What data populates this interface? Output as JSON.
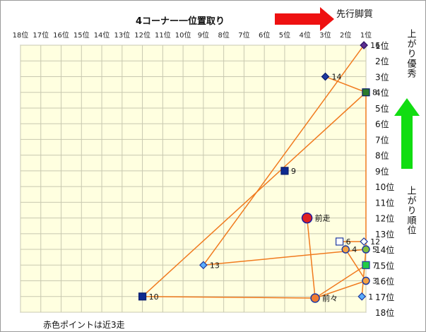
{
  "chart_data": {
    "type": "scatter",
    "title": "4コーナー一位置取り",
    "xlabel": "4コーナー一位置取り",
    "ylabel": "上がり順位",
    "x_range": [
      18,
      1
    ],
    "y_range": [
      1,
      18
    ],
    "x_ticks": [
      "18位",
      "17位",
      "16位",
      "15位",
      "14位",
      "13位",
      "12位",
      "11位",
      "10位",
      "9位",
      "8位",
      "7位",
      "6位",
      "5位",
      "4位",
      "3位",
      "2位",
      "1位"
    ],
    "y_ticks": [
      "1位",
      "2位",
      "3位",
      "4位",
      "5位",
      "6位",
      "7位",
      "8位",
      "9位",
      "10位",
      "11位",
      "12位",
      "13位",
      "14位",
      "15位",
      "16位",
      "17位",
      "18位"
    ],
    "grid": true,
    "legend": "none",
    "points": [
      {
        "label": "16",
        "x": 1.1,
        "y": 1.0,
        "marker": "diamond",
        "fill": "#5b2d90",
        "stroke": "#2a1060"
      },
      {
        "label": "14",
        "x": 3.0,
        "y": 3.0,
        "marker": "diamond",
        "fill": "#1f3aa0",
        "stroke": "#0a1c6a"
      },
      {
        "label": "8",
        "x": 1.0,
        "y": 4.0,
        "marker": "square",
        "fill": "#2c7a2c",
        "stroke": "#0a1c6a"
      },
      {
        "label": "9",
        "x": 5.0,
        "y": 9.0,
        "marker": "square",
        "fill": "#0f2a90",
        "stroke": "#0a1c6a"
      },
      {
        "label": "前走",
        "x": 3.9,
        "y": 12.0,
        "marker": "circle",
        "fill": "#e02020",
        "stroke": "#1a1aa0",
        "size": 7
      },
      {
        "label": "6",
        "x": 2.3,
        "y": 13.5,
        "marker": "square",
        "fill": "#ffffff",
        "stroke": "#1f3aa0"
      },
      {
        "label": "12",
        "x": 1.1,
        "y": 13.5,
        "marker": "diamond",
        "fill": "#ffffff",
        "stroke": "#1f3aa0"
      },
      {
        "label": "4",
        "x": 2.0,
        "y": 14.0,
        "marker": "circle",
        "fill": "#f4a142",
        "stroke": "#1f3aa0"
      },
      {
        "label": "5",
        "x": 1.0,
        "y": 14.0,
        "marker": "circle",
        "fill": "#7fbf3f",
        "stroke": "#1f3aa0"
      },
      {
        "label": "7",
        "x": 1.0,
        "y": 15.0,
        "marker": "square",
        "fill": "#22cc44",
        "stroke": "#1f3aa0"
      },
      {
        "label": "13",
        "x": 9.0,
        "y": 15.0,
        "marker": "diamond",
        "fill": "#5aaeff",
        "stroke": "#1f3aa0"
      },
      {
        "label": "3",
        "x": 1.0,
        "y": 16.0,
        "marker": "circle",
        "fill": "#f4a142",
        "stroke": "#1f3aa0"
      },
      {
        "label": "1",
        "x": 1.2,
        "y": 17.0,
        "marker": "diamond",
        "fill": "#5aaeff",
        "stroke": "#1f3aa0"
      },
      {
        "label": "10",
        "x": 12.0,
        "y": 17.0,
        "marker": "square",
        "fill": "#0f2a90",
        "stroke": "#0a1c6a"
      },
      {
        "label": "前々",
        "x": 3.5,
        "y": 17.1,
        "marker": "circle",
        "fill": "#f07a30",
        "stroke": "#1f3aa0",
        "size": 6
      }
    ],
    "lines": [
      {
        "color": "#f07a1e",
        "path": [
          [
            1.1,
            1.0
          ],
          [
            9.0,
            15.0
          ]
        ]
      },
      {
        "color": "#f07a1e",
        "path": [
          [
            3.0,
            3.0
          ],
          [
            1.0,
            4.0
          ],
          [
            12.0,
            17.0
          ]
        ]
      },
      {
        "color": "#f07a1e",
        "path": [
          [
            1.0,
            4.0
          ],
          [
            1.0,
            14.0
          ]
        ]
      },
      {
        "color": "#f07a1e",
        "path": [
          [
            9.0,
            15.0
          ],
          [
            1.0,
            14.0
          ]
        ]
      },
      {
        "color": "#f07a1e",
        "path": [
          [
            12.0,
            17.0
          ],
          [
            3.5,
            17.1
          ]
        ]
      },
      {
        "color": "#f07a1e",
        "path": [
          [
            3.9,
            12.0
          ],
          [
            3.5,
            17.1
          ]
        ]
      },
      {
        "color": "#f07a1e",
        "path": [
          [
            3.5,
            17.1
          ],
          [
            1.0,
            16.0
          ]
        ]
      },
      {
        "color": "#f07a1e",
        "path": [
          [
            2.3,
            13.5
          ],
          [
            1.1,
            13.5
          ]
        ]
      },
      {
        "color": "#f07a1e",
        "path": [
          [
            2.0,
            14.0
          ],
          [
            1.0,
            16.0
          ]
        ]
      },
      {
        "color": "#f07a1e",
        "path": [
          [
            1.0,
            14.0
          ],
          [
            1.2,
            17.0
          ]
        ]
      },
      {
        "color": "#f07a1e",
        "path": [
          [
            1.0,
            15.0
          ],
          [
            3.5,
            17.1
          ]
        ]
      }
    ]
  },
  "annotations": {
    "arrow_label_right": "先行脚質",
    "side_label_top": "上がり優秀",
    "side_label_bottom": "上がり順位",
    "footer_note": "赤色ポイントは近3走"
  },
  "colors": {
    "plot_bg": "#ffffe0",
    "grid": "#c8c8b0",
    "arrow_red": "#ee1111",
    "arrow_green": "#11dd11",
    "line_orange": "#f07a1e"
  }
}
